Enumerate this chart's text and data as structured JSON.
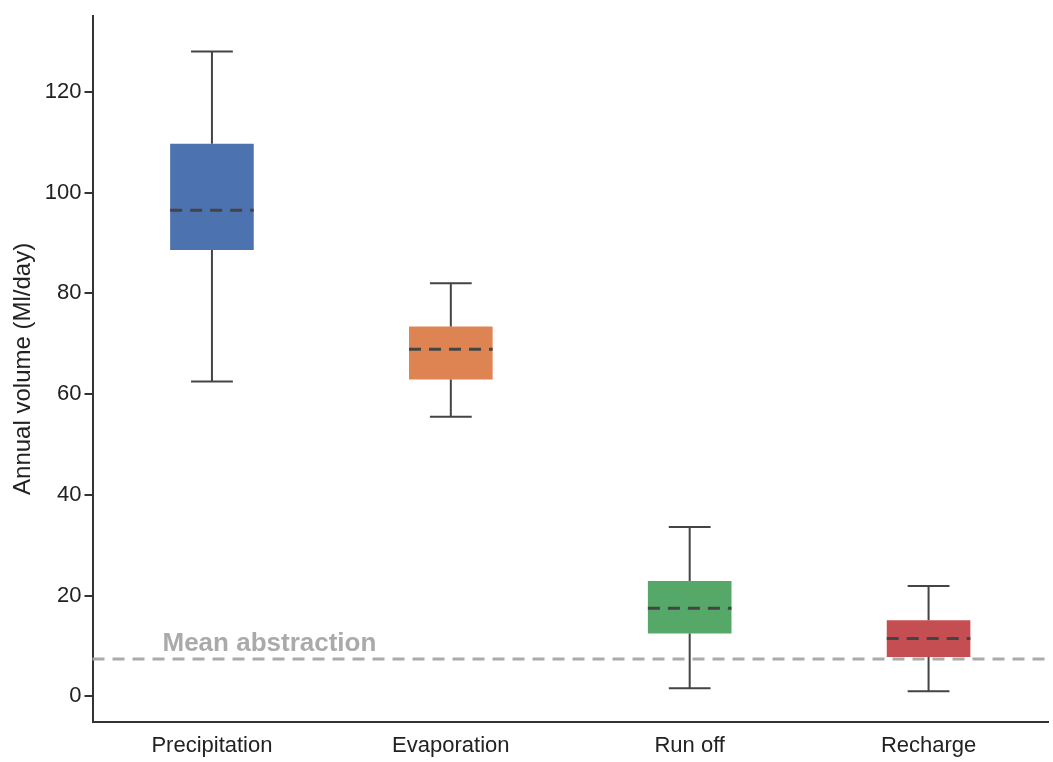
{
  "chart_data": {
    "type": "box",
    "ylabel": "Annual volume (Ml/day)",
    "categories": [
      "Precipitation",
      "Evaporation",
      "Run off",
      "Recharge"
    ],
    "colors": [
      "#4c72b0",
      "#dd8452",
      "#55a868",
      "#c44e52"
    ],
    "boxes": [
      {
        "low": 62.5,
        "q1": 88.6,
        "median": 96.5,
        "q3": 109.7,
        "high": 128
      },
      {
        "low": 55.5,
        "q1": 62.9,
        "median": 68.9,
        "q3": 73.4,
        "high": 82
      },
      {
        "low": 1.6,
        "q1": 12.5,
        "median": 17.5,
        "q3": 22.9,
        "high": 33.6
      },
      {
        "low": 1,
        "q1": 7.8,
        "median": 11.5,
        "q3": 15.1,
        "high": 21.9
      }
    ],
    "ylim": [
      -5,
      135
    ],
    "yticks": [
      0,
      20,
      40,
      60,
      80,
      100,
      120
    ],
    "grid": false,
    "legend": false,
    "ref_lines": [
      {
        "axis": "y",
        "value": 7.4,
        "label": "Mean abstraction",
        "color": "#aaaaaa",
        "line_style": "dashed"
      }
    ]
  }
}
